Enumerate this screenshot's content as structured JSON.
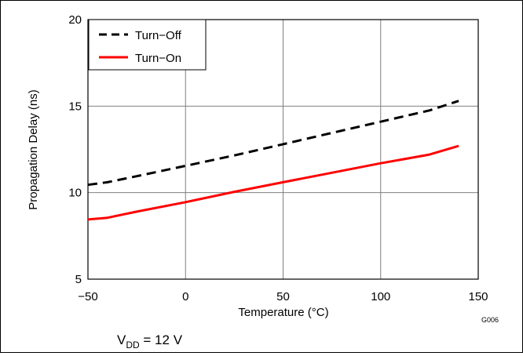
{
  "chart_data": {
    "type": "line",
    "xlabel": "Temperature (°C)",
    "ylabel": "Propagation Delay (ns)",
    "xlim": [
      -50,
      150
    ],
    "ylim": [
      5,
      20
    ],
    "x_ticks": [
      -50,
      0,
      50,
      100,
      150
    ],
    "y_ticks": [
      5,
      10,
      15,
      20
    ],
    "x_tick_labels": [
      "−50",
      "0",
      "50",
      "100",
      "150"
    ],
    "y_tick_labels": [
      "5",
      "10",
      "15",
      "20"
    ],
    "grid": true,
    "legend_placement": "top-left",
    "figure_code": "G006",
    "condition": {
      "main": "V",
      "sub": "DD",
      "rest": " = 12 V"
    },
    "series": [
      {
        "name": "Turn−Off",
        "style": "dashed",
        "color": "#000000",
        "x": [
          -50,
          -40,
          -25,
          0,
          25,
          50,
          75,
          100,
          125,
          140
        ],
        "y": [
          10.45,
          10.6,
          10.95,
          11.55,
          12.15,
          12.8,
          13.45,
          14.1,
          14.75,
          15.3
        ]
      },
      {
        "name": "Turn−On",
        "style": "solid",
        "color": "#ff0000",
        "x": [
          -50,
          -40,
          -25,
          0,
          25,
          50,
          75,
          100,
          125,
          140
        ],
        "y": [
          8.45,
          8.55,
          8.9,
          9.45,
          10.05,
          10.6,
          11.15,
          11.7,
          12.2,
          12.7
        ]
      }
    ]
  }
}
